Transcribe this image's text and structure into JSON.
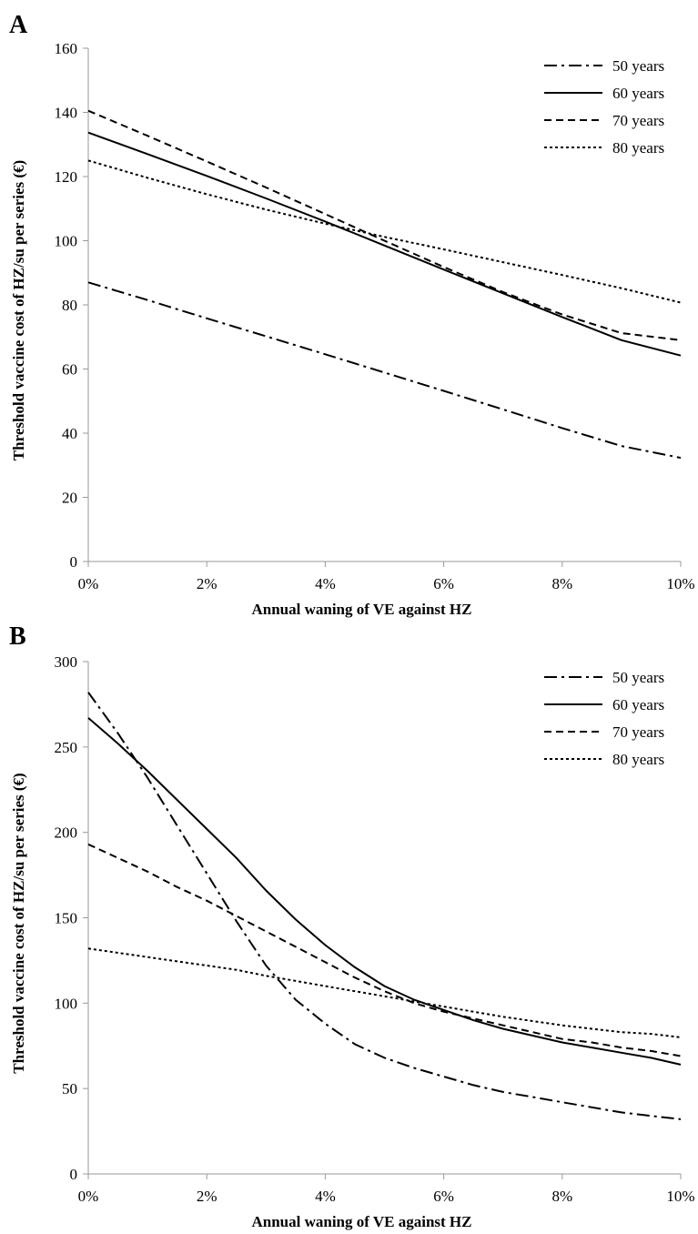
{
  "chart_data": [
    {
      "panel": "A",
      "type": "line",
      "xlabel": "Annual waning of VE against HZ",
      "ylabel": "Threshold vaccine cost of HZ/su per series (€)",
      "x": [
        0,
        1,
        2,
        3,
        4,
        5,
        6,
        7,
        8,
        9,
        10
      ],
      "x_tick_labels": [
        "0%",
        "2%",
        "4%",
        "6%",
        "8%",
        "10%"
      ],
      "x_ticks": [
        0,
        2,
        4,
        6,
        8,
        10
      ],
      "ylim": [
        0,
        160
      ],
      "y_ticks": [
        0,
        20,
        40,
        60,
        80,
        100,
        120,
        140,
        160
      ],
      "grid": false,
      "legend_position": "top-right",
      "series": [
        {
          "name": "50 years",
          "dash": "dash-dot",
          "values": [
            87,
            81.5,
            75.8,
            70.2,
            64.6,
            58.9,
            53.2,
            47.4,
            41.6,
            36,
            32.3
          ]
        },
        {
          "name": "60 years",
          "dash": "solid",
          "values": [
            133.7,
            127,
            120.2,
            113.2,
            106,
            98.5,
            91,
            83.6,
            76.2,
            69,
            64.2
          ]
        },
        {
          "name": "70 years",
          "dash": "dashed",
          "values": [
            140.5,
            132.7,
            124.7,
            116.6,
            108.3,
            100,
            91.8,
            84,
            77,
            71.2,
            69
          ]
        },
        {
          "name": "80 years",
          "dash": "dotted",
          "values": [
            125,
            119.6,
            114.5,
            109.7,
            105.3,
            101.2,
            97.3,
            93.3,
            89.3,
            85.2,
            80.7
          ]
        }
      ]
    },
    {
      "panel": "B",
      "type": "line",
      "xlabel": "Annual waning  of VE against HZ",
      "ylabel": "Threshold vaccine cost of HZ/su per series (€)",
      "x": [
        0,
        0.5,
        1,
        1.5,
        2,
        2.5,
        3,
        3.5,
        4,
        4.5,
        5,
        5.5,
        6,
        6.5,
        7,
        7.5,
        8,
        8.5,
        9,
        9.5,
        10
      ],
      "x_tick_labels": [
        "0%",
        "2%",
        "4%",
        "6%",
        "8%",
        "10%"
      ],
      "x_ticks": [
        0,
        2,
        4,
        6,
        8,
        10
      ],
      "ylim": [
        0,
        300
      ],
      "y_ticks": [
        0,
        50,
        100,
        150,
        200,
        250,
        300
      ],
      "grid": false,
      "legend_position": "top-right",
      "series": [
        {
          "name": "50 years",
          "dash": "dash-dot",
          "values": [
            282,
            258,
            232,
            204,
            176,
            148,
            122,
            102,
            88,
            76,
            68,
            62,
            57,
            52,
            48,
            45,
            42,
            39,
            36,
            34,
            32
          ]
        },
        {
          "name": "60 years",
          "dash": "solid",
          "values": [
            267,
            252,
            236,
            219,
            202,
            185,
            166,
            149,
            134,
            121,
            110,
            102,
            96,
            90,
            85,
            81,
            77,
            74,
            71,
            68,
            64
          ]
        },
        {
          "name": "70 years",
          "dash": "dashed",
          "values": [
            193,
            185,
            177,
            168,
            160,
            151,
            142,
            133,
            124,
            115,
            107,
            100,
            95,
            91,
            87,
            83,
            79,
            77,
            74,
            72,
            69
          ]
        },
        {
          "name": "80 years",
          "dash": "dotted",
          "values": [
            132,
            129.5,
            127,
            124.5,
            122,
            119.5,
            116,
            113,
            110,
            107,
            104,
            101,
            98,
            95,
            92,
            89.5,
            87,
            85,
            83,
            82,
            80
          ]
        }
      ]
    }
  ]
}
